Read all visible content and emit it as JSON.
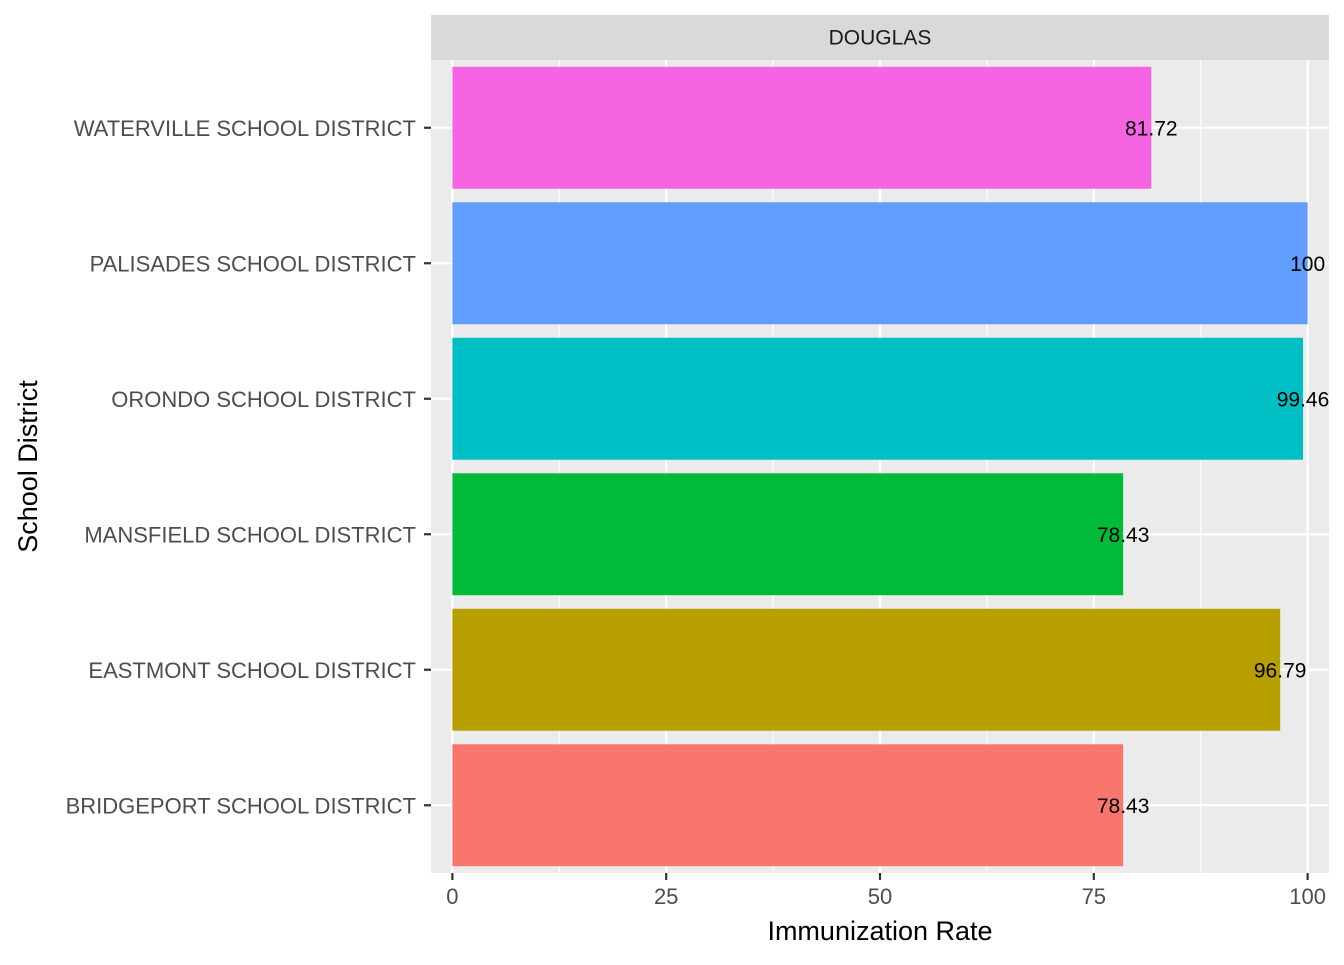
{
  "chart_data": {
    "type": "bar",
    "orientation": "horizontal",
    "facet_label": "DOUGLAS",
    "xlabel": "Immunization Rate",
    "ylabel": "School District",
    "xlim": [
      -2.5,
      102.5
    ],
    "x_ticks": [
      0,
      25,
      50,
      75,
      100
    ],
    "x_tick_labels": [
      "0",
      "25",
      "50",
      "75",
      "100"
    ],
    "grid": true,
    "legend": "none",
    "categories": [
      "BRIDGEPORT SCHOOL DISTRICT",
      "EASTMONT SCHOOL DISTRICT",
      "MANSFIELD SCHOOL DISTRICT",
      "ORONDO SCHOOL DISTRICT",
      "PALISADES SCHOOL DISTRICT",
      "WATERVILLE SCHOOL DISTRICT"
    ],
    "values": [
      78.43,
      96.79,
      78.43,
      99.46,
      100,
      81.72
    ],
    "value_labels": [
      "78.43",
      "96.79",
      "78.43",
      "99.46",
      "100",
      "81.72"
    ],
    "colors": [
      "#F8766D",
      "#B79F00",
      "#00BA38",
      "#00BFC4",
      "#619CFF",
      "#F564E3"
    ],
    "panel_background": "#EBEBEB",
    "strip_background": "#D9D9D9",
    "grid_color": "#FFFFFF"
  }
}
